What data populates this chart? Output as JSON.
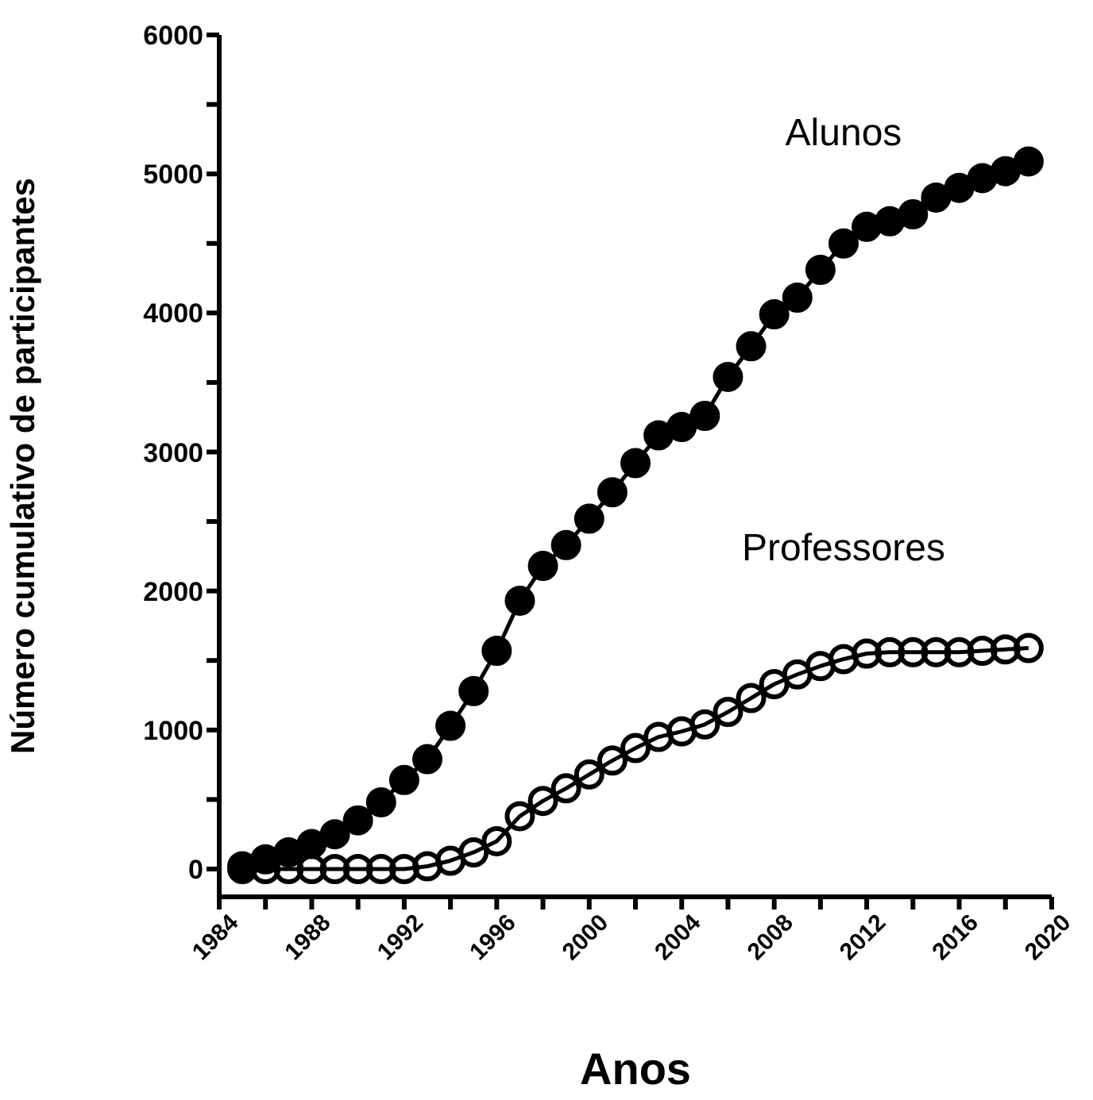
{
  "chart_data": {
    "type": "line",
    "xlabel": "Anos",
    "ylabel": "Número cumulativo de participantes",
    "x": [
      1985,
      1986,
      1987,
      1988,
      1989,
      1990,
      1991,
      1992,
      1993,
      1994,
      1995,
      1996,
      1997,
      1998,
      1999,
      2000,
      2001,
      2002,
      2003,
      2004,
      2005,
      2006,
      2007,
      2008,
      2009,
      2010,
      2011,
      2012,
      2013,
      2014,
      2015,
      2016,
      2017,
      2018,
      2019
    ],
    "series": [
      {
        "name": "Alunos",
        "color": "#000000",
        "values": [
          20,
          70,
          120,
          180,
          250,
          350,
          480,
          640,
          790,
          1030,
          1280,
          1570,
          1930,
          2180,
          2330,
          2520,
          2710,
          2920,
          3120,
          3180,
          3260,
          3540,
          3760,
          3990,
          4110,
          4310,
          4500,
          4620,
          4660,
          4710,
          4830,
          4900,
          4970,
          5020,
          5090
        ]
      },
      {
        "name": "Professores",
        "color": "#000000",
        "values": [
          0,
          0,
          0,
          0,
          0,
          0,
          0,
          0,
          20,
          60,
          120,
          200,
          380,
          490,
          580,
          680,
          780,
          870,
          950,
          990,
          1040,
          1130,
          1230,
          1330,
          1400,
          1460,
          1510,
          1550,
          1560,
          1560,
          1560,
          1560,
          1570,
          1580,
          1590
        ]
      }
    ],
    "xlim": [
      1984,
      2020
    ],
    "xticks": [
      1984,
      {
        "value": 1986,
        "label": null
      },
      1988,
      {
        "value": 1990,
        "label": null
      },
      1992,
      {
        "value": 1994,
        "label": null
      },
      1996,
      {
        "value": 1998,
        "label": null
      },
      2000,
      {
        "value": 2002,
        "label": null
      },
      2004,
      {
        "value": 2006,
        "label": null
      },
      2008,
      {
        "value": 2010,
        "label": null
      },
      2012,
      {
        "value": 2014,
        "label": null
      },
      2016,
      {
        "value": 2018,
        "label": null
      },
      2020
    ],
    "ylim": [
      -200,
      6000
    ],
    "yticks": [
      0,
      {
        "value": 500,
        "label": null
      },
      1000,
      {
        "value": 1500,
        "label": null
      },
      2000,
      {
        "value": 2500,
        "label": null
      },
      3000,
      {
        "value": 3500,
        "label": null
      },
      4000,
      {
        "value": 4500,
        "label": null
      },
      5000,
      {
        "value": 5500,
        "label": null
      },
      6000
    ],
    "grid": false,
    "legend": false,
    "marker": "circle",
    "line_style": "solid"
  }
}
